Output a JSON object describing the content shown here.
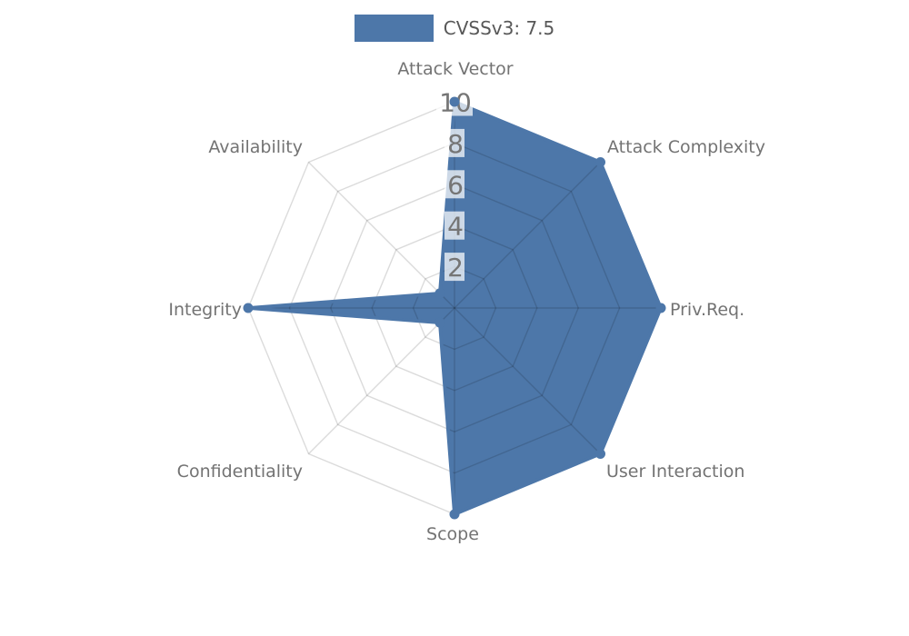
{
  "legend": {
    "label": "CVSSv3: 7.5",
    "swatch_color": "#4d77a9"
  },
  "chart_data": {
    "type": "radar",
    "title": "",
    "categories": [
      "Attack Vector",
      "Attack Complexity",
      "Priv.Req.",
      "User Interaction",
      "Scope",
      "Confidentiality",
      "Integrity",
      "Availability"
    ],
    "series": [
      {
        "name": "CVSSv3: 7.5",
        "color": "#4d77a9",
        "values": [
          10,
          10,
          10,
          10,
          10,
          1,
          10,
          1
        ]
      }
    ],
    "radial_ticks": [
      2,
      4,
      6,
      8,
      10
    ],
    "rlim": [
      0,
      10
    ],
    "start_axis": "top",
    "direction": "clockwise",
    "grid": "on",
    "grid_shape": "polygon",
    "grid_color": "rgba(0,0,0,0.14)",
    "tick_box_color": "rgba(255,255,255,0.72)",
    "tick_label_color": "#757575",
    "axis_label_color": "#737373",
    "legend_position": "top-center"
  }
}
